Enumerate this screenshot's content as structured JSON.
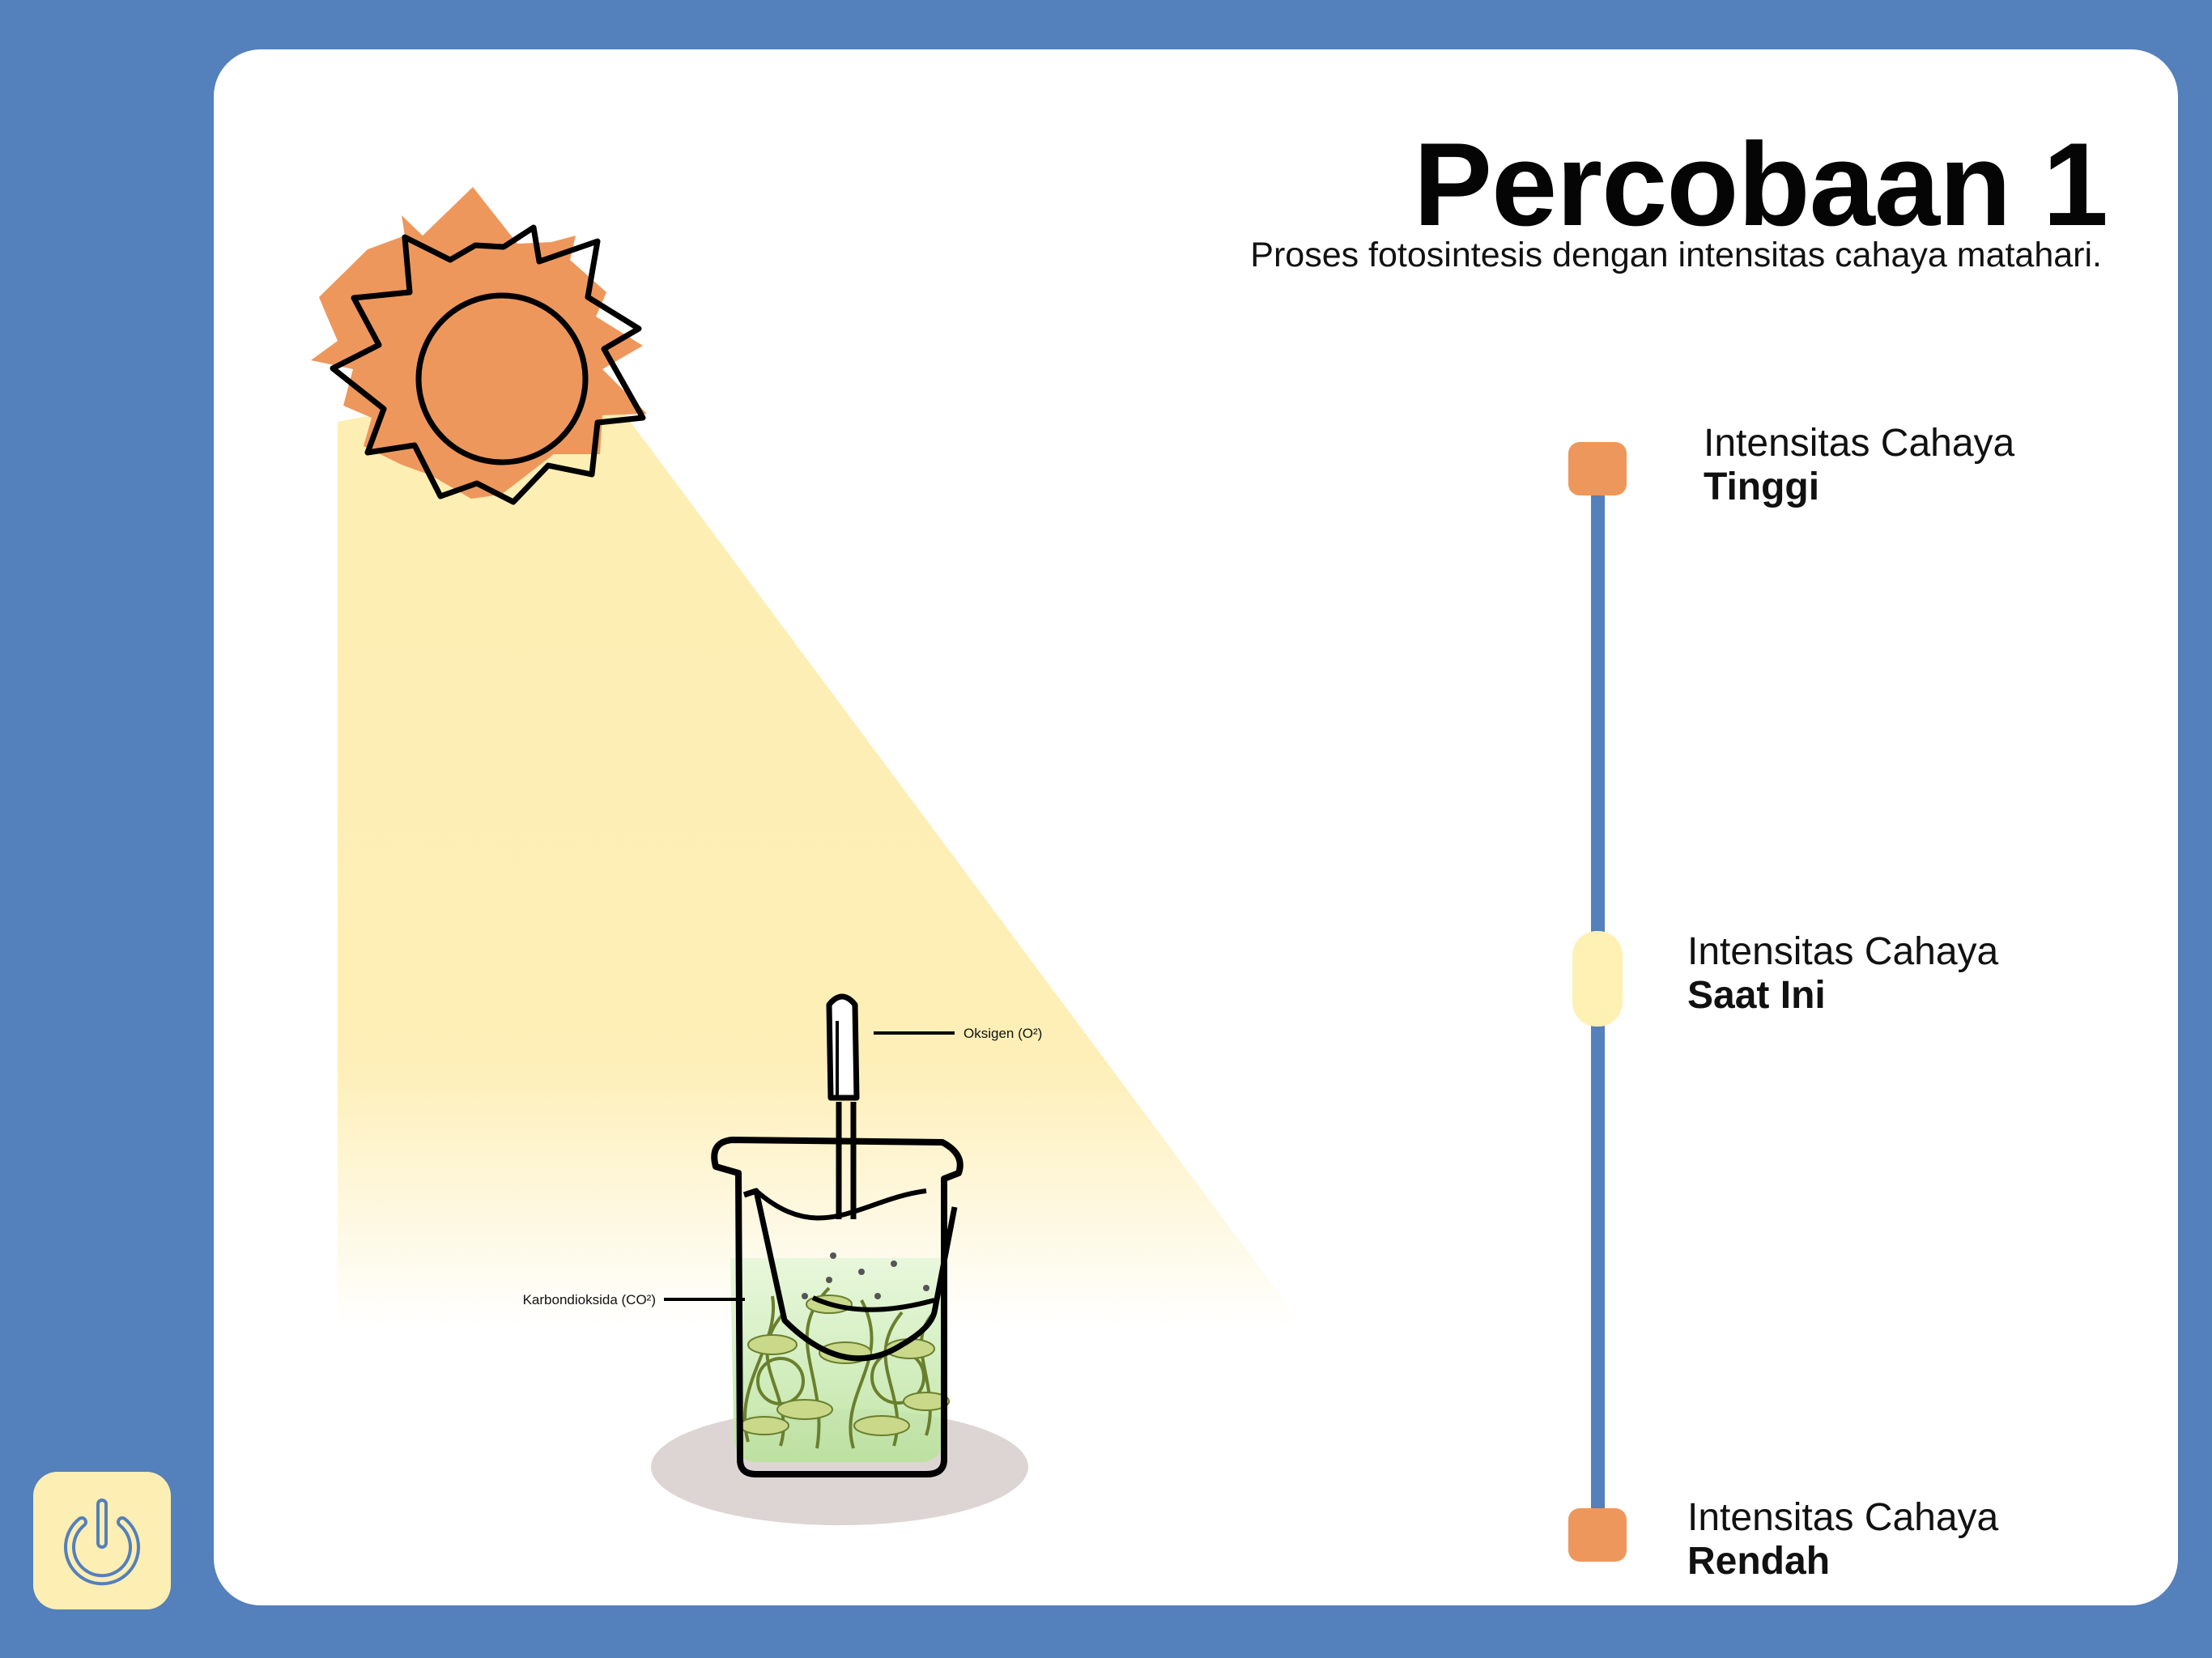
{
  "header": {
    "title": "Percobaan 1",
    "subtitle": "Proses fotosintesis dengan intensitas cahaya matahari."
  },
  "diagram": {
    "oxygen_label": "Oksigen (O²)",
    "co2_label": "Karbondioksida (CO²)"
  },
  "intensity_scale": {
    "high": {
      "line1": "Intensitas Cahaya",
      "line2": "Tinggi"
    },
    "current": {
      "line1": "Intensitas Cahaya",
      "line2": "Saat Ini"
    },
    "low": {
      "line1": "Intensitas Cahaya",
      "line2": "Rendah"
    }
  },
  "icons": {
    "sun": "sun-icon",
    "power": "power-icon"
  },
  "colors": {
    "background": "#5480bb",
    "sun": "#ee975c",
    "light_beam": "#fdeeb3",
    "marker_high_low": "#ee975c",
    "marker_current": "#fff0b4",
    "plant_water": "#cdecb5",
    "shadow": "#ddd4d4"
  }
}
